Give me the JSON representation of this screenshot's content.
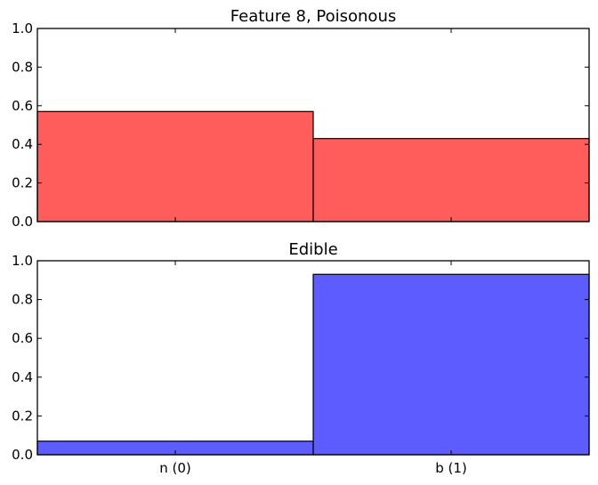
{
  "chart_data": [
    {
      "type": "bar",
      "title": "Feature 8, Poisonous",
      "categories": [
        "n (0)",
        "b (1)"
      ],
      "values": [
        0.57,
        0.43
      ],
      "color": "#ff3333",
      "ylim": [
        0,
        1.0
      ],
      "yticks": [
        "0.0",
        "0.2",
        "0.4",
        "0.6",
        "0.8",
        "1.0"
      ],
      "show_xtick_labels": false
    },
    {
      "type": "bar",
      "title": "Edible",
      "categories": [
        "n (0)",
        "b (1)"
      ],
      "values": [
        0.07,
        0.93
      ],
      "color": "#3333ff",
      "ylim": [
        0,
        1.0
      ],
      "yticks": [
        "0.0",
        "0.2",
        "0.4",
        "0.6",
        "0.8",
        "1.0"
      ],
      "show_xtick_labels": true
    }
  ]
}
